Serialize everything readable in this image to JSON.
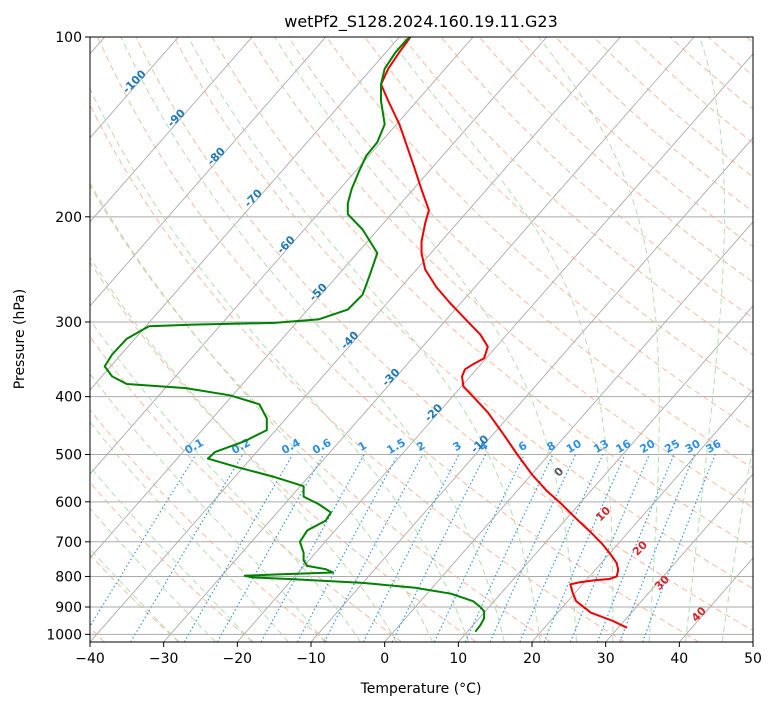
{
  "chart_data": {
    "type": "line",
    "title": "wetPf2_S128.2024.160.19.11.G23",
    "xlabel": "Temperature (°C)",
    "ylabel": "Pressure (hPa)",
    "xlim": [
      -40,
      50
    ],
    "ylim": [
      1030,
      100
    ],
    "y_scale": "log",
    "x_ticks": [
      "−40",
      "−30",
      "−20",
      "−10",
      "0",
      "10",
      "20",
      "30",
      "40",
      "50"
    ],
    "y_ticks": [
      "100",
      "200",
      "300",
      "400",
      "500",
      "600",
      "700",
      "800",
      "900",
      "1000"
    ],
    "grid": true,
    "colors": {
      "temperature": "#ee0000",
      "dewpoint": "#008000",
      "isotherm": "#aaaaaa",
      "dry_adiabat": "#f4a582",
      "moist_adiabat": "#a6d9a6",
      "mixing_ratio": "#2b8fe3",
      "dry_label": "#1f77b4",
      "moist_label": "#d62728"
    },
    "series": [
      {
        "name": "",
        "values": [
          [
            32.9,
            975
          ],
          [
            31,
            950
          ],
          [
            28,
            920
          ],
          [
            26,
            880
          ],
          [
            25.5,
            850
          ],
          [
            25.2,
            825
          ],
          [
            26.5,
            818
          ],
          [
            28.5,
            812
          ],
          [
            30.5,
            808
          ],
          [
            31.5,
            800
          ],
          [
            31.7,
            780
          ],
          [
            31.5,
            760
          ],
          [
            30.5,
            730
          ],
          [
            29.5,
            705
          ],
          [
            28,
            675
          ],
          [
            26,
            640
          ],
          [
            24,
            605
          ],
          [
            22,
            575
          ],
          [
            20,
            540
          ],
          [
            18,
            500
          ],
          [
            16,
            460
          ],
          [
            14,
            425
          ],
          [
            12,
            400
          ],
          [
            10.7,
            385
          ],
          [
            10.5,
            370
          ],
          [
            10.9,
            360
          ],
          [
            12,
            353
          ],
          [
            13.5,
            345
          ],
          [
            14,
            330
          ],
          [
            13,
            315
          ],
          [
            11,
            297
          ],
          [
            9,
            280
          ],
          [
            7,
            262
          ],
          [
            5.5,
            245
          ],
          [
            5,
            230
          ],
          [
            5,
            220
          ],
          [
            5.5,
            205
          ],
          [
            6,
            195
          ],
          [
            5,
            180
          ],
          [
            4,
            165
          ],
          [
            3,
            152
          ],
          [
            2,
            140
          ],
          [
            0.5,
            128
          ],
          [
            -0.5,
            120
          ],
          [
            0.5,
            113
          ],
          [
            2,
            106
          ],
          [
            3,
            102
          ],
          [
            3.5,
            100
          ]
        ]
      },
      {
        "name": "",
        "values": [
          [
            12.3,
            990
          ],
          [
            13,
            965
          ],
          [
            13.5,
            940
          ],
          [
            13.5,
            915
          ],
          [
            13,
            900
          ],
          [
            12,
            880
          ],
          [
            9,
            855
          ],
          [
            4,
            835
          ],
          [
            -3,
            820
          ],
          [
            -13,
            808
          ],
          [
            -18,
            803
          ],
          [
            -19,
            798
          ],
          [
            -14,
            793
          ],
          [
            -7,
            788
          ],
          [
            -8,
            778
          ],
          [
            -10.5,
            768
          ],
          [
            -11,
            752
          ],
          [
            -11,
            730
          ],
          [
            -11.5,
            700
          ],
          [
            -10.5,
            670
          ],
          [
            -8,
            645
          ],
          [
            -7.3,
            625
          ],
          [
            -9,
            605
          ],
          [
            -11,
            588
          ],
          [
            -11,
            565
          ],
          [
            -15,
            545
          ],
          [
            -20,
            525
          ],
          [
            -24,
            508
          ],
          [
            -23,
            495
          ],
          [
            -19,
            475
          ],
          [
            -16,
            455
          ],
          [
            -16,
            435
          ],
          [
            -17,
            412
          ],
          [
            -21,
            398
          ],
          [
            -27,
            387
          ],
          [
            -35,
            381
          ],
          [
            -37,
            370
          ],
          [
            -38,
            356
          ],
          [
            -37,
            340
          ],
          [
            -35,
            320
          ],
          [
            -32,
            305
          ],
          [
            -26,
            303
          ],
          [
            -15,
            301
          ],
          [
            -9,
            297
          ],
          [
            -5,
            286
          ],
          [
            -3,
            270
          ],
          [
            -2,
            250
          ],
          [
            -1,
            230
          ],
          [
            -3,
            210
          ],
          [
            -5,
            198
          ],
          [
            -5,
            190
          ],
          [
            -4.5,
            180
          ],
          [
            -3.5,
            168
          ],
          [
            -2.5,
            158
          ],
          [
            -1,
            150
          ],
          [
            0,
            140
          ],
          [
            -0.5,
            128
          ],
          [
            -0.5,
            120
          ],
          [
            0,
            113
          ],
          [
            1.5,
            106
          ],
          [
            3,
            101
          ],
          [
            3.5,
            100
          ]
        ]
      }
    ],
    "dry_adiabat_labels": [
      "-100",
      "-90",
      "-80",
      "-70",
      "-60",
      "-50",
      "-40",
      "-30",
      "-20",
      "-10"
    ],
    "moist_adiabat_labels": [
      "0",
      "10",
      "20",
      "30",
      "40"
    ],
    "mixing_ratio_labels": [
      "0.1",
      "0.2",
      "0.4",
      "0.6",
      "1",
      "1.5",
      "2",
      "3",
      "4",
      "6",
      "8",
      "10",
      "13",
      "16",
      "20",
      "25",
      "30",
      "36"
    ]
  }
}
